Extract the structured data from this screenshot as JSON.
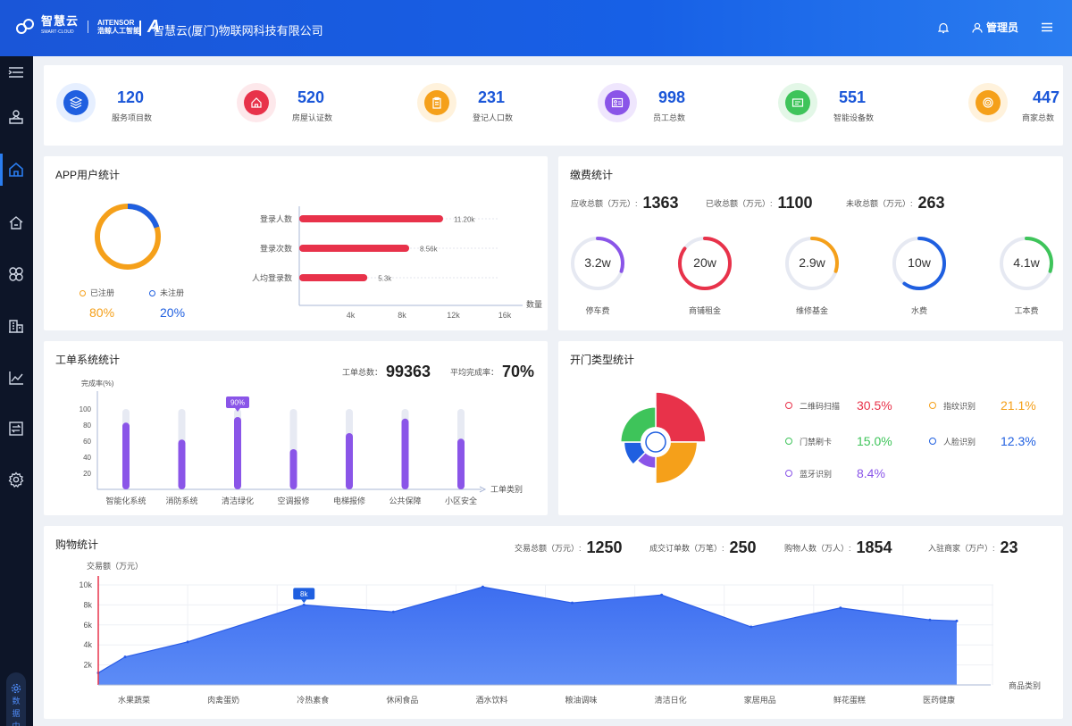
{
  "header": {
    "brand": "智慧云",
    "brand_sub": "SMART·CLOUD",
    "partner_line1": "AITENSOR",
    "partner_line2": "浩鲸人工智能",
    "company": "智慧云(厦门)物联网科技有限公司",
    "user": "管理员"
  },
  "sidebar": {
    "data_center": [
      "数",
      "据",
      "中",
      "心"
    ]
  },
  "kpis": [
    {
      "value": "120",
      "label": "服务项目数",
      "color": "#1f5fe0",
      "bg": "#e6efff"
    },
    {
      "value": "520",
      "label": "房屋认证数",
      "color": "#e8324a",
      "bg": "#fde8eb"
    },
    {
      "value": "231",
      "label": "登记人口数",
      "color": "#f5a01a",
      "bg": "#fff2dc"
    },
    {
      "value": "998",
      "label": "员工总数",
      "color": "#8a55e8",
      "bg": "#efe6fd"
    },
    {
      "value": "551",
      "label": "智能设备数",
      "color": "#3ec45a",
      "bg": "#e3f7e7"
    },
    {
      "value": "447",
      "label": "商家总数",
      "color": "#f5a01a",
      "bg": "#fff2dc"
    }
  ],
  "app_users": {
    "title": "APP用户统计",
    "registered_label": "已注册",
    "unregistered_label": "未注册",
    "registered_pct": "80%",
    "unregistered_pct": "20%",
    "registered_value": 80,
    "unit_label": "数量",
    "bars": [
      {
        "label": "登录人数",
        "value": 11.2,
        "text": "11.20k"
      },
      {
        "label": "登录次数",
        "value": 8.56,
        "text": "8.56k"
      },
      {
        "label": "人均登录数",
        "value": 5.3,
        "text": "5.3k"
      }
    ],
    "ticks": [
      "4k",
      "8k",
      "12k",
      "16k"
    ]
  },
  "fees": {
    "title": "缴费统计",
    "receivable_label": "应收总额（万元）:",
    "receivable": "1363",
    "received_label": "已收总额（万元）:",
    "received": "1100",
    "unreceived_label": "未收总额（万元）:",
    "unreceived": "263",
    "rings": [
      {
        "value": "3.2w",
        "label": "停车费",
        "color": "#8a55e8",
        "frac": 0.3
      },
      {
        "value": "20w",
        "label": "商铺租金",
        "color": "#e8324a",
        "frac": 0.85
      },
      {
        "value": "2.9w",
        "label": "维修基金",
        "color": "#f5a01a",
        "frac": 0.3
      },
      {
        "value": "10w",
        "label": "水费",
        "color": "#1f5fe0",
        "frac": 0.6
      },
      {
        "value": "4.1w",
        "label": "工本费",
        "color": "#3ec45a",
        "frac": 0.3
      }
    ]
  },
  "work_orders": {
    "title": "工单系统统计",
    "total_label": "工单总数：",
    "total": "99363",
    "rate_label": "平均完成率：",
    "rate": "70%",
    "y_label": "完成率(%)",
    "x_label": "工单类别",
    "y_ticks": [
      "100",
      "80",
      "60",
      "40",
      "20"
    ],
    "highlight_label": "90%",
    "categories": [
      "智能化系统",
      "消防系统",
      "清洁绿化",
      "空调报修",
      "电梯报修",
      "公共保障",
      "小区安全"
    ],
    "values": [
      83,
      62,
      90,
      50,
      70,
      88,
      63
    ]
  },
  "door": {
    "title": "开门类型统计",
    "items": [
      {
        "label": "二维码扫描",
        "pct": "30.5%",
        "value": 30.5,
        "color": "#e8324a"
      },
      {
        "label": "指纹识别",
        "pct": "21.1%",
        "value": 21.1,
        "color": "#f5a01a"
      },
      {
        "label": "门禁刷卡",
        "pct": "15.0%",
        "value": 15.0,
        "color": "#3ec45a"
      },
      {
        "label": "人脸识别",
        "pct": "12.3%",
        "value": 12.3,
        "color": "#1f5fe0"
      },
      {
        "label": "蓝牙识别",
        "pct": "8.4%",
        "value": 8.4,
        "color": "#8a55e8"
      }
    ]
  },
  "shopping": {
    "title": "购物统计",
    "trade_label": "交易总额（万元）:",
    "trade": "1250",
    "orders_label": "成交订单数（万笔）:",
    "orders": "250",
    "buyers_label": "购物人数（万人）:",
    "buyers": "1854",
    "merchants_label": "入驻商家（万户）:",
    "merchants": "23",
    "y_label": "交易额（万元）",
    "x_label": "商品类别",
    "highlight_label": "8k",
    "y_ticks": [
      "10k",
      "8k",
      "6k",
      "4k",
      "2k"
    ]
  },
  "chart_data": {
    "type": "area",
    "title": "购物统计",
    "xlabel": "商品类别",
    "ylabel": "交易额（万元）",
    "ylim": [
      0,
      10
    ],
    "categories": [
      "水果蔬菜",
      "肉禽蛋奶",
      "冷热素食",
      "休闲食品",
      "酒水饮料",
      "粮油调味",
      "清洁日化",
      "家居用品",
      "鲜花蛋糕",
      "医药健康"
    ],
    "x": [
      0,
      0.3,
      1,
      2.3,
      3.3,
      4.3,
      5.3,
      6.3,
      7.3,
      8.3,
      9.3,
      9.6
    ],
    "values": [
      1.2,
      2.8,
      4.3,
      8.0,
      7.3,
      9.8,
      8.2,
      9.0,
      5.8,
      7.7,
      6.5,
      6.4
    ]
  }
}
